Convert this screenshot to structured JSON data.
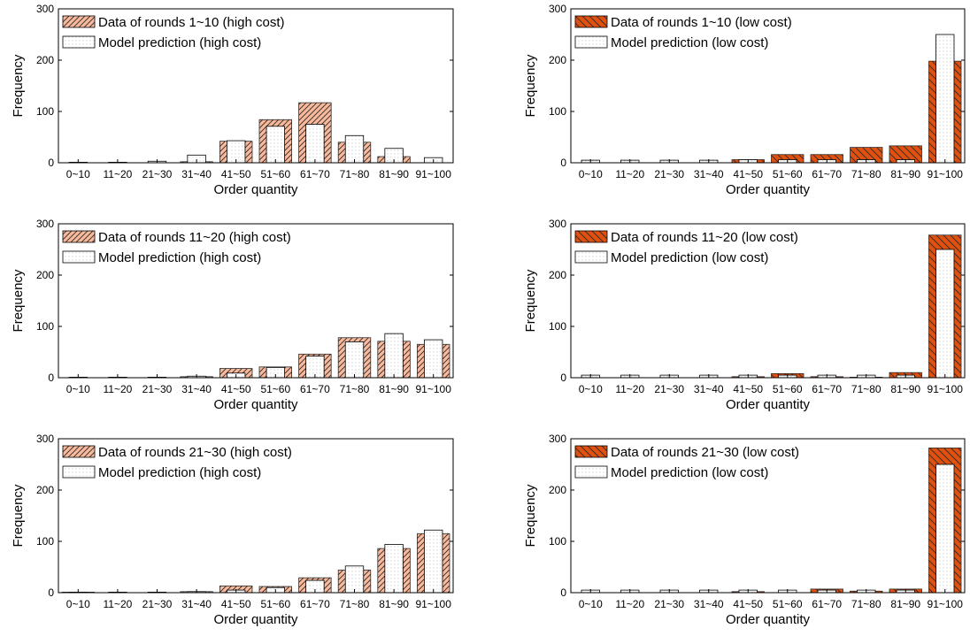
{
  "colors": {
    "high_cost_fill": "#FBB99C",
    "low_cost_fill": "#E0500F",
    "hatch": "#2b2b2b",
    "pred_fill": "#ffffff",
    "pred_dots": "#9a9a9a",
    "axis": "#000000"
  },
  "chart_data": [
    {
      "type": "bar",
      "xlabel": "Order quantity",
      "ylabel": "Frequency",
      "ylim": [
        0,
        300
      ],
      "yticks": [
        0,
        100,
        200,
        300
      ],
      "categories": [
        "0~10",
        "11~20",
        "21~30",
        "31~40",
        "41~50",
        "51~60",
        "61~70",
        "71~80",
        "81~90",
        "91~100"
      ],
      "series": [
        {
          "name": "Data of rounds 1~10 (high cost)",
          "style": "high",
          "values": [
            0,
            0,
            0,
            2,
            42,
            84,
            117,
            40,
            12,
            0
          ]
        },
        {
          "name": "Model prediction (high cost)",
          "style": "pred",
          "values": [
            1,
            1,
            3,
            15,
            43,
            71,
            75,
            53,
            28,
            10
          ]
        }
      ]
    },
    {
      "type": "bar",
      "xlabel": "Order quantity",
      "ylabel": "Frequency",
      "ylim": [
        0,
        300
      ],
      "yticks": [
        0,
        100,
        200,
        300
      ],
      "categories": [
        "0~10",
        "11~20",
        "21~30",
        "31~40",
        "41~50",
        "51~60",
        "61~70",
        "71~80",
        "81~90",
        "91~100"
      ],
      "series": [
        {
          "name": "Data of rounds 1~10 (low cost)",
          "style": "low",
          "values": [
            0,
            0,
            0,
            0,
            6,
            16,
            16,
            30,
            33,
            198
          ]
        },
        {
          "name": "Model prediction (low cost)",
          "style": "pred",
          "values": [
            5,
            5,
            5,
            5,
            6,
            6,
            6,
            6,
            6,
            250
          ]
        }
      ]
    },
    {
      "type": "bar",
      "xlabel": "Order quantity",
      "ylabel": "Frequency",
      "ylim": [
        0,
        300
      ],
      "yticks": [
        0,
        100,
        200,
        300
      ],
      "categories": [
        "0~10",
        "11~20",
        "21~30",
        "31~40",
        "41~50",
        "51~60",
        "61~70",
        "71~80",
        "81~90",
        "91~100"
      ],
      "series": [
        {
          "name": "Data of rounds 11~20 (high cost)",
          "style": "high",
          "values": [
            0,
            0,
            0,
            2,
            18,
            21,
            46,
            78,
            71,
            65
          ]
        },
        {
          "name": "Model prediction (high cost)",
          "style": "pred",
          "values": [
            1,
            1,
            1,
            3,
            9,
            20,
            42,
            70,
            86,
            74
          ]
        }
      ]
    },
    {
      "type": "bar",
      "xlabel": "Order quantity",
      "ylabel": "Frequency",
      "ylim": [
        0,
        300
      ],
      "yticks": [
        0,
        100,
        200,
        300
      ],
      "categories": [
        "0~10",
        "11~20",
        "21~30",
        "31~40",
        "41~50",
        "51~60",
        "61~70",
        "71~80",
        "81~90",
        "91~100"
      ],
      "series": [
        {
          "name": "Data of rounds 11~20 (low cost)",
          "style": "low",
          "values": [
            0,
            0,
            0,
            0,
            2,
            8,
            2,
            1,
            10,
            278
          ]
        },
        {
          "name": "Model prediction (low cost)",
          "style": "pred",
          "values": [
            5,
            5,
            5,
            5,
            5,
            5,
            5,
            5,
            5,
            250
          ]
        }
      ]
    },
    {
      "type": "bar",
      "xlabel": "Order quantity",
      "ylabel": "Frequency",
      "ylim": [
        0,
        300
      ],
      "yticks": [
        0,
        100,
        200,
        300
      ],
      "categories": [
        "0~10",
        "11~20",
        "21~30",
        "31~40",
        "41~50",
        "51~60",
        "61~70",
        "71~80",
        "81~90",
        "91~100"
      ],
      "series": [
        {
          "name": "Data of rounds 21~30 (high cost)",
          "style": "high",
          "values": [
            1,
            0,
            0,
            2,
            13,
            12,
            29,
            44,
            86,
            115
          ]
        },
        {
          "name": "Model prediction (high cost)",
          "style": "pred",
          "values": [
            1,
            1,
            1,
            2,
            5,
            10,
            24,
            52,
            94,
            122
          ]
        }
      ]
    },
    {
      "type": "bar",
      "xlabel": "Order quantity",
      "ylabel": "Frequency",
      "ylim": [
        0,
        300
      ],
      "yticks": [
        0,
        100,
        200,
        300
      ],
      "categories": [
        "0~10",
        "11~20",
        "21~30",
        "31~40",
        "41~50",
        "51~60",
        "61~70",
        "71~80",
        "81~90",
        "91~100"
      ],
      "series": [
        {
          "name": "Data of rounds 21~30 (low cost)",
          "style": "low",
          "values": [
            0,
            0,
            0,
            0,
            2,
            0,
            7,
            3,
            7,
            282
          ]
        },
        {
          "name": "Model prediction (low cost)",
          "style": "pred",
          "values": [
            5,
            5,
            5,
            5,
            5,
            5,
            5,
            5,
            5,
            250
          ]
        }
      ]
    }
  ]
}
